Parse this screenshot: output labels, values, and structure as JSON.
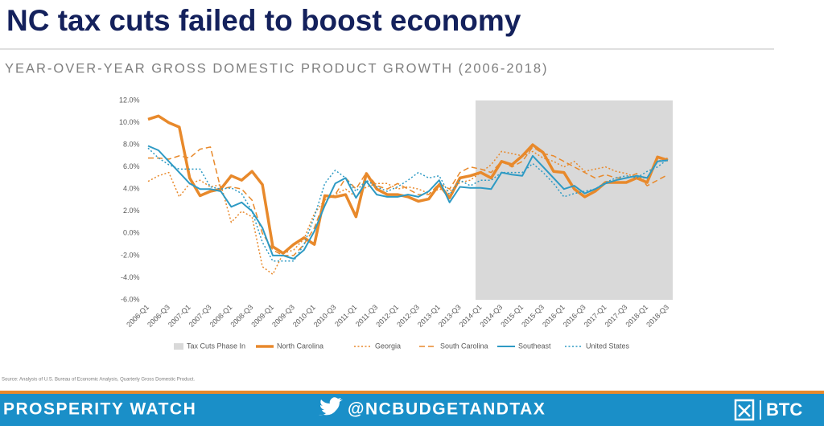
{
  "title": "NC tax cuts failed to boost economy",
  "source": "Source: Analysis of U.S. Bureau of Economic Analysis, Quarterly Gross Domestic Product.",
  "footer": {
    "left": "PROSPERITY WATCH",
    "center": "@NCBUDGETANDTAX",
    "right": "BTC"
  },
  "chart_data": {
    "type": "line",
    "title": "YEAR-OVER-YEAR GROSS DOMESTIC PRODUCT GROWTH (2006-2018)",
    "categories": [
      "2006-Q1",
      null,
      "2006-Q3",
      null,
      "2007-Q1",
      null,
      "2007-Q3",
      null,
      "2008-Q1",
      null,
      "2008-Q3",
      null,
      "2009-Q1",
      null,
      "2009-Q3",
      null,
      "2010-Q1",
      null,
      "2010-Q3",
      null,
      "2011-Q1",
      null,
      "2011-Q3",
      null,
      "2012-Q1",
      null,
      "2012-Q3",
      null,
      "2013-Q1",
      null,
      "2013-Q3",
      null,
      "2014-Q1",
      null,
      "2014-Q3",
      null,
      "2015-Q1",
      null,
      "2015-Q3",
      null,
      "2016-Q1",
      null,
      "2016-Q3",
      null,
      "2017-Q1",
      null,
      "2017-Q3",
      null,
      "2018-Q1",
      null,
      "2018-Q3"
    ],
    "shade": {
      "name": "Tax Cuts Phase In",
      "from": "2014-Q1",
      "color": "#d9d9d9"
    },
    "series": [
      {
        "name": "North Carolina",
        "color": "#e8892b",
        "style": "solid",
        "width": 3.5,
        "values": [
          10.3,
          10.6,
          10.0,
          9.6,
          5.0,
          3.4,
          3.8,
          4.0,
          5.2,
          4.8,
          5.6,
          4.4,
          -1.2,
          -1.8,
          -1.0,
          -0.4,
          -1.0,
          3.4,
          3.3,
          3.5,
          1.5,
          5.4,
          4.0,
          3.5,
          3.5,
          3.3,
          2.9,
          3.1,
          4.4,
          3.2,
          5.0,
          5.2,
          5.5,
          5.0,
          6.5,
          6.2,
          7.0,
          8.0,
          7.3,
          5.6,
          5.5,
          4.0,
          3.3,
          3.8,
          4.6,
          4.6,
          4.6,
          5.0,
          4.6,
          6.9,
          6.6
        ]
      },
      {
        "name": "Georgia",
        "color": "#e8892b",
        "style": "dotted",
        "width": 1.5,
        "values": [
          4.7,
          5.2,
          5.5,
          3.3,
          4.5,
          4.8,
          4.2,
          4.4,
          1.0,
          2.0,
          1.5,
          -3.0,
          -3.7,
          -1.8,
          -1.5,
          -0.5,
          1.8,
          3.0,
          3.5,
          4.0,
          3.3,
          4.2,
          4.5,
          4.5,
          4.0,
          4.2,
          4.0,
          3.6,
          4.0,
          3.8,
          4.6,
          4.8,
          5.5,
          6.2,
          7.4,
          7.2,
          7.0,
          7.4,
          6.8,
          6.5,
          6.0,
          6.5,
          5.6,
          5.8,
          6.0,
          5.6,
          5.4,
          5.0,
          5.0,
          6.5,
          6.8
        ]
      },
      {
        "name": "South Carolina",
        "color": "#e8892b",
        "style": "dashed",
        "width": 1.5,
        "values": [
          6.8,
          6.8,
          6.7,
          7.0,
          6.8,
          7.6,
          7.8,
          4.0,
          4.2,
          4.0,
          3.0,
          0.0,
          -1.5,
          -2.0,
          -2.0,
          -1.0,
          0.5,
          3.0,
          3.5,
          5.0,
          4.0,
          5.5,
          4.3,
          4.0,
          4.5,
          4.0,
          3.5,
          3.5,
          4.5,
          4.0,
          5.5,
          6.0,
          5.8,
          5.5,
          6.5,
          6.0,
          6.5,
          7.8,
          7.2,
          7.0,
          6.5,
          6.0,
          5.5,
          5.0,
          5.3,
          5.0,
          5.0,
          5.4,
          4.3,
          4.8,
          5.3
        ]
      },
      {
        "name": "Southeast",
        "color": "#2e9ac4",
        "style": "solid",
        "width": 2,
        "values": [
          7.9,
          7.5,
          6.5,
          5.5,
          4.5,
          4.0,
          4.0,
          3.8,
          2.4,
          2.8,
          2.0,
          0.5,
          -2.0,
          -2.0,
          -2.3,
          -1.5,
          0.2,
          2.5,
          4.5,
          5.0,
          3.2,
          4.7,
          3.5,
          3.3,
          3.3,
          3.5,
          3.3,
          3.8,
          4.8,
          2.8,
          4.2,
          4.1,
          4.1,
          4.0,
          5.5,
          5.3,
          5.2,
          7.0,
          6.0,
          5.0,
          4.0,
          4.3,
          3.6,
          4.0,
          4.5,
          4.8,
          5.0,
          5.2,
          5.0,
          6.5,
          6.6
        ]
      },
      {
        "name": "United States",
        "color": "#2e9ac4",
        "style": "dotted",
        "width": 1.5,
        "values": [
          7.7,
          6.8,
          6.2,
          5.8,
          5.8,
          5.8,
          4.2,
          4.0,
          4.1,
          3.6,
          2.0,
          -0.8,
          -2.5,
          -2.5,
          -2.5,
          -1.0,
          1.5,
          4.5,
          5.7,
          5.0,
          3.8,
          4.8,
          4.2,
          3.8,
          4.2,
          4.8,
          5.5,
          5.0,
          5.2,
          3.5,
          4.8,
          4.3,
          4.8,
          4.8,
          5.5,
          5.5,
          5.5,
          6.3,
          5.5,
          4.5,
          3.3,
          3.6,
          3.8,
          4.0,
          4.6,
          5.0,
          5.2,
          5.0,
          5.6,
          6.0,
          6.7
        ]
      }
    ],
    "ylim": [
      -6,
      12
    ],
    "yticks": [
      {
        "value": -6,
        "label": "-6.0%"
      },
      {
        "value": -4,
        "label": "-4.0%"
      },
      {
        "value": -2,
        "label": "-2.0%"
      },
      {
        "value": 0,
        "label": "0.0%"
      },
      {
        "value": 2,
        "label": "2.0%"
      },
      {
        "value": 4,
        "label": "4.0%"
      },
      {
        "value": 6,
        "label": "6.0%"
      },
      {
        "value": 8,
        "label": "8.0%"
      },
      {
        "value": 10,
        "label": "10.0%"
      },
      {
        "value": 12,
        "label": "12.0%"
      }
    ],
    "grid": false
  }
}
